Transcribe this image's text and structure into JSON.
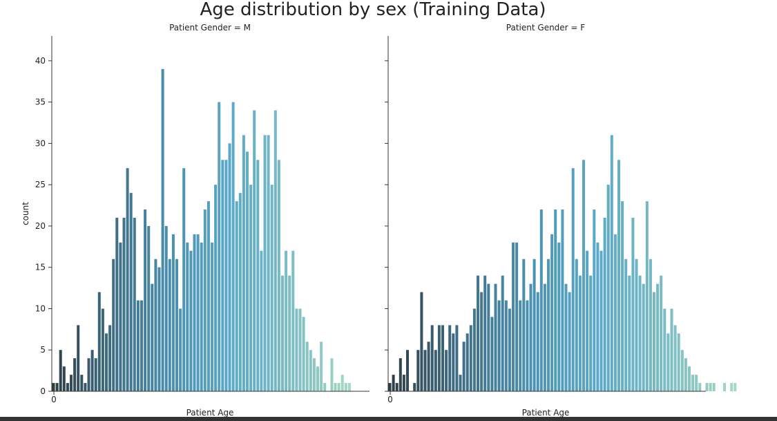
{
  "chart_data": {
    "type": "bar",
    "title": "Age distribution by sex (Training Data)",
    "xlabel": "Patient Age",
    "ylabel": "count",
    "ylim": [
      0,
      43
    ],
    "yticks": [
      0,
      5,
      10,
      15,
      20,
      25,
      30,
      35,
      40
    ],
    "xtick_labels": [
      "0"
    ],
    "grid": false,
    "palette": [
      "#2f3e46",
      "#3f6e86",
      "#4a90b0",
      "#5aa9c8",
      "#7cbcc4",
      "#a3d9c1"
    ],
    "panels": [
      {
        "title": "Patient Gender = M",
        "values": [
          1,
          1,
          5,
          3,
          1,
          2,
          4,
          8,
          2,
          1,
          4,
          5,
          4,
          12,
          10,
          7,
          8,
          16,
          21,
          18,
          21,
          27,
          24,
          21,
          11,
          11,
          22,
          20,
          13,
          16,
          15,
          39,
          20,
          16,
          19,
          16,
          10,
          27,
          18,
          17,
          19,
          19,
          18,
          22,
          23,
          18,
          25,
          35,
          28,
          28,
          30,
          35,
          23,
          24,
          31,
          29,
          25,
          34,
          28,
          17,
          31,
          31,
          25,
          34,
          28,
          14,
          17,
          14,
          17,
          10,
          10,
          9,
          6,
          5,
          4,
          3,
          6,
          1,
          0,
          4,
          1,
          1,
          2,
          1,
          1
        ]
      },
      {
        "title": "Patient Gender = F",
        "values": [
          1,
          2,
          1,
          4,
          2,
          5,
          0,
          1,
          5,
          12,
          5,
          6,
          8,
          5,
          8,
          8,
          5,
          8,
          7,
          8,
          2,
          6,
          7,
          8,
          10,
          14,
          12,
          14,
          13,
          9,
          13,
          11,
          14,
          11,
          10,
          18,
          18,
          11,
          16,
          11,
          13,
          16,
          12,
          22,
          13,
          16,
          19,
          22,
          18,
          22,
          13,
          12,
          27,
          16,
          14,
          28,
          17,
          14,
          22,
          18,
          17,
          21,
          25,
          31,
          19,
          28,
          23,
          16,
          14,
          21,
          16,
          14,
          13,
          23,
          16,
          12,
          13,
          14,
          10,
          7,
          10,
          8,
          7,
          5,
          4,
          3,
          2,
          2,
          1,
          0,
          1,
          1,
          1,
          0,
          0,
          1,
          0,
          1,
          1
        ]
      }
    ]
  }
}
